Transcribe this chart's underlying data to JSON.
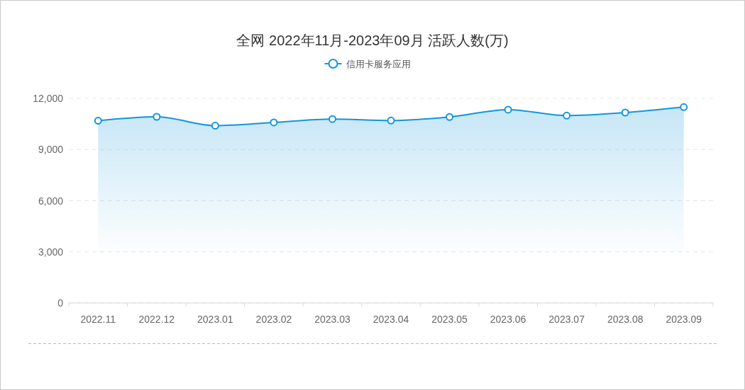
{
  "chart_data": {
    "type": "area",
    "title": "全网 2022年11月-2023年09月 活跃人数(万)",
    "categories": [
      "2022.11",
      "2022.12",
      "2023.01",
      "2023.02",
      "2023.03",
      "2023.04",
      "2023.05",
      "2023.06",
      "2023.07",
      "2023.08",
      "2023.09"
    ],
    "series": [
      {
        "name": "信用卡服务应用",
        "color": "#1296db",
        "values": [
          10690,
          10920,
          10400,
          10590,
          10790,
          10700,
          10910,
          11340,
          10990,
          11170,
          11490
        ]
      }
    ],
    "ylim": [
      0,
      12000
    ],
    "yticks": [
      {
        "value": 0,
        "label": "0"
      },
      {
        "value": 3000,
        "label": "3,000"
      },
      {
        "value": 6000,
        "label": "6,000"
      },
      {
        "value": 9000,
        "label": "9,000"
      },
      {
        "value": 12000,
        "label": "12,000"
      }
    ],
    "grid": "y",
    "legend": "top",
    "marker": "circle"
  }
}
